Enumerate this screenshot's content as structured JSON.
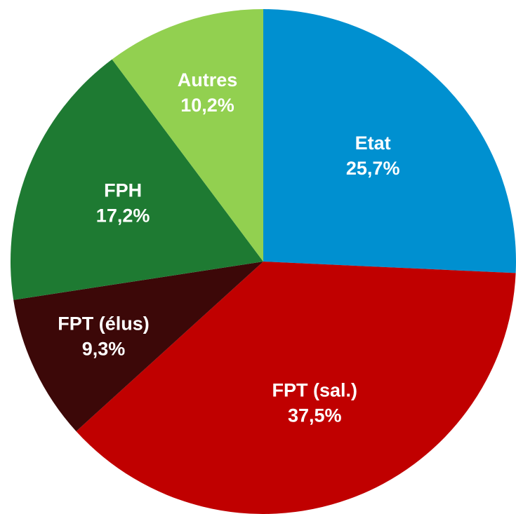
{
  "chart_data": {
    "type": "pie",
    "categories": [
      "Etat",
      "FPT (sal.)",
      "FPT (élus)",
      "FPH",
      "Autres"
    ],
    "values": [
      25.7,
      37.5,
      9.3,
      17.2,
      10.2
    ],
    "value_labels": [
      "25,7%",
      "37,5%",
      "9,3%",
      "17,2%",
      "10,2%"
    ],
    "colors": [
      "#0090d0",
      "#c00000",
      "#3c0808",
      "#1e7a32",
      "#92d050"
    ],
    "label_color": "#ffffff"
  }
}
